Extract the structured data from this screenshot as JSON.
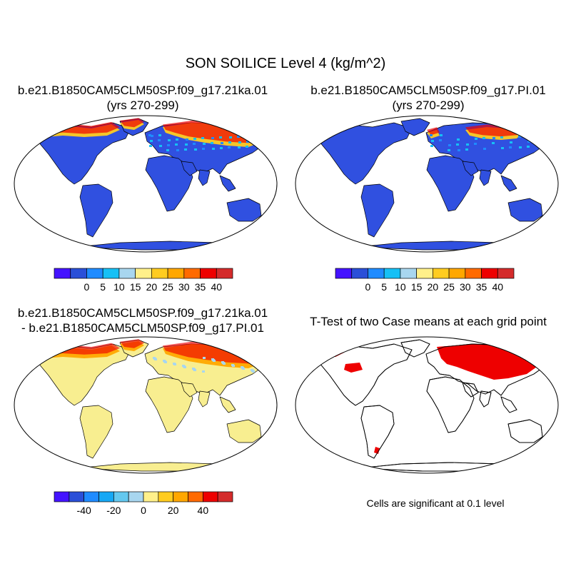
{
  "figure": {
    "title": "SON SOILICE Level 4 (kg/m^2)"
  },
  "panels": [
    {
      "title_line1": "b.e21.B1850CAM5CLM50SP.f09_g17.21ka.01",
      "title_line2": "(yrs 270-299)",
      "map_style": "case",
      "ice_extent": "large"
    },
    {
      "title_line1": "b.e21.B1850CAM5CLM50SP.f09_g17.PI.01",
      "title_line2": "(yrs 270-299)",
      "map_style": "case",
      "ice_extent": "small"
    },
    {
      "title_line1": "b.e21.B1850CAM5CLM50SP.f09_g17.21ka.01",
      "title_line2": "- b.e21.B1850CAM5CLM50SP.f09_g17.PI.01",
      "map_style": "diff"
    },
    {
      "title_line1": "T-Test of two Case means at each grid point",
      "map_style": "ttest",
      "note": "Cells are significant at 0.1 level"
    }
  ],
  "colorbars": {
    "case": {
      "colors": [
        "#4413ff",
        "#2a4fd8",
        "#1f8bff",
        "#16c0f5",
        "#a8d6ef",
        "#fff08a",
        "#ffcc20",
        "#ffa700",
        "#ff6a00",
        "#ee0000",
        "#d42b2b"
      ],
      "labels": [
        "0",
        "5",
        "10",
        "15",
        "20",
        "25",
        "30",
        "35",
        "40"
      ]
    },
    "diff": {
      "colors": [
        "#4413ff",
        "#2a4fd8",
        "#1f8bff",
        "#16a8f5",
        "#64c8ef",
        "#a8d6ef",
        "#fff08a",
        "#ffcc20",
        "#ffa700",
        "#ff6a00",
        "#ee0000",
        "#d42b2b"
      ],
      "labels": [
        "-40",
        "-20",
        "0",
        "20",
        "40"
      ]
    }
  },
  "colors": {
    "ocean": "#ffffff",
    "land_case": "#3050e0",
    "land_diff": "#f8ee90",
    "significant": "#ee0000",
    "coast": "#000000"
  }
}
